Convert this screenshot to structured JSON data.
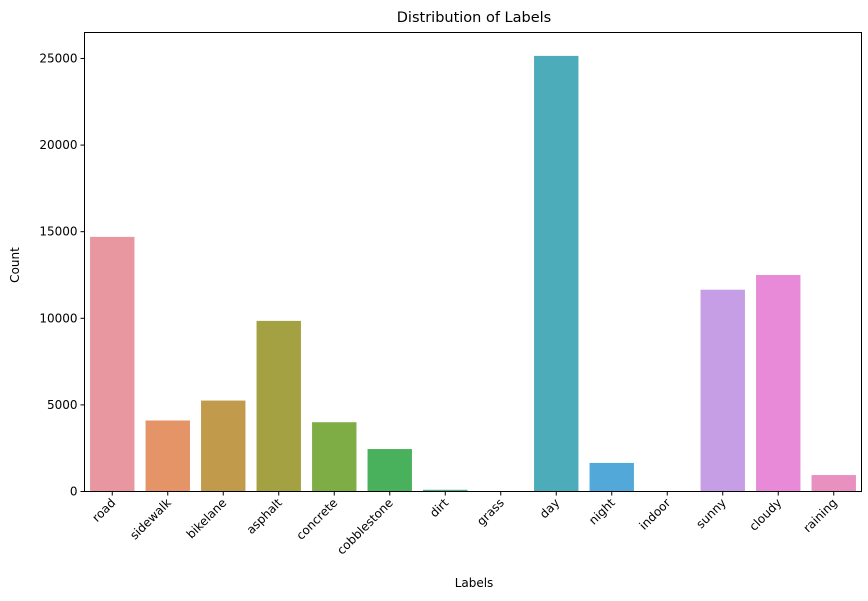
{
  "chart_data": {
    "type": "bar",
    "title": "Distribution of Labels",
    "xlabel": "Labels",
    "ylabel": "Count",
    "categories": [
      "road",
      "sidewalk",
      "bikelane",
      "asphalt",
      "concrete",
      "cobblestone",
      "dirt",
      "grass",
      "day",
      "night",
      "indoor",
      "sunny",
      "cloudy",
      "raining"
    ],
    "values": [
      14700,
      4100,
      5250,
      9850,
      4000,
      2450,
      100,
      0,
      25150,
      1650,
      0,
      11650,
      12500,
      950
    ],
    "colors": [
      "#e8969f",
      "#e59467",
      "#c29a4c",
      "#a4a142",
      "#7fad45",
      "#49b05c",
      "#4ab08c",
      "#4bada3",
      "#4cacba",
      "#52a9d9",
      "#a8a6e8",
      "#c69ee6",
      "#e88ad8",
      "#e891c0"
    ],
    "ylim": [
      0,
      26500
    ],
    "yticks": [
      0,
      5000,
      10000,
      15000,
      20000,
      25000
    ],
    "grid": false,
    "legend": "none"
  }
}
